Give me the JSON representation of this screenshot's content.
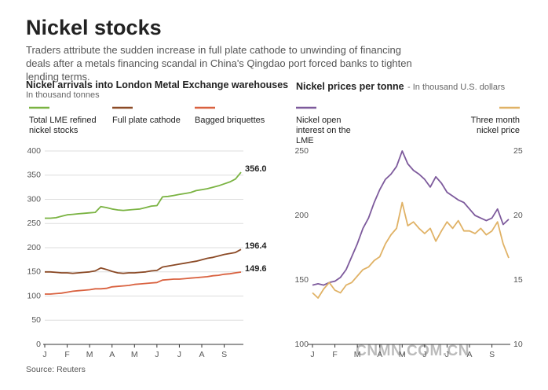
{
  "title": "Nickel stocks",
  "subtitle": "Traders attribute the sudden increase in full plate cathode to unwinding of financing deals after a metals financing scandal in China's Qingdao port forced banks to tighten lending terms.",
  "source": "Source: Reuters",
  "watermark": "CNMN.COM.CN",
  "chart_data": [
    {
      "type": "line",
      "title": "Nickel arrivals into London Metal Exchange warehouses",
      "subtitle": "In thousand tonnes",
      "categories": [
        "J",
        null,
        null,
        null,
        "F",
        null,
        null,
        null,
        "M",
        null,
        null,
        null,
        "A",
        null,
        null,
        null,
        "M",
        null,
        null,
        null,
        "J",
        null,
        null,
        null,
        "J",
        null,
        null,
        null,
        "A",
        null,
        null,
        null,
        "S",
        null,
        null,
        null
      ],
      "ylim": [
        0,
        400
      ],
      "yticks": [
        0,
        50,
        100,
        150,
        200,
        250,
        300,
        350,
        400
      ],
      "grid": true,
      "series": [
        {
          "name": "Total LME refined nickel stocks",
          "color": "#7ab342",
          "values": [
            261,
            261,
            262,
            265,
            268,
            269,
            270,
            271,
            272,
            273,
            285,
            283,
            280,
            278,
            277,
            278,
            279,
            280,
            283,
            286,
            287,
            305,
            306,
            308,
            310,
            312,
            314,
            318,
            320,
            322,
            325,
            328,
            332,
            336,
            342,
            356
          ],
          "value_labels": [
            null,
            null,
            null,
            null,
            null,
            null,
            null,
            null,
            null,
            null,
            null,
            null,
            null,
            null,
            null,
            null,
            null,
            null,
            null,
            null,
            null,
            null,
            null,
            null,
            null,
            null,
            null,
            null,
            null,
            null,
            null,
            null,
            null,
            null,
            null,
            "356.0"
          ]
        },
        {
          "name": "Full plate cathode",
          "color": "#8b4a26",
          "values": [
            150,
            150,
            149,
            148,
            148,
            147,
            148,
            149,
            150,
            152,
            158,
            155,
            151,
            148,
            147,
            148,
            148,
            149,
            150,
            152,
            153,
            160,
            162,
            164,
            166,
            168,
            170,
            172,
            175,
            178,
            180,
            183,
            186,
            188,
            190,
            196.4
          ],
          "value_labels": [
            null,
            null,
            null,
            null,
            null,
            null,
            null,
            null,
            null,
            null,
            null,
            null,
            null,
            null,
            null,
            null,
            null,
            null,
            null,
            null,
            null,
            null,
            null,
            null,
            null,
            null,
            null,
            null,
            null,
            null,
            null,
            null,
            null,
            null,
            null,
            "196.4"
          ]
        },
        {
          "name": "Bagged briquettes",
          "color": "#d9613f",
          "values": [
            104,
            104,
            105,
            106,
            108,
            110,
            111,
            112,
            113,
            115,
            115,
            116,
            119,
            120,
            121,
            122,
            124,
            125,
            126,
            127,
            128,
            133,
            134,
            135,
            135,
            136,
            137,
            138,
            139,
            140,
            142,
            143,
            145,
            146,
            148,
            149.6
          ],
          "value_labels": [
            null,
            null,
            null,
            null,
            null,
            null,
            null,
            null,
            null,
            null,
            null,
            null,
            null,
            null,
            null,
            null,
            null,
            null,
            null,
            null,
            null,
            null,
            null,
            null,
            null,
            null,
            null,
            null,
            null,
            null,
            null,
            null,
            null,
            null,
            null,
            "149.6"
          ]
        }
      ]
    },
    {
      "type": "line",
      "title": "Nickel prices per tonne",
      "subtitle": "- In thousand U.S. dollars",
      "categories": [
        "J",
        null,
        null,
        null,
        "F",
        null,
        null,
        null,
        "M",
        null,
        null,
        null,
        "A",
        null,
        null,
        null,
        "M",
        null,
        null,
        null,
        "J",
        null,
        null,
        null,
        "J",
        null,
        null,
        null,
        "A",
        null,
        null,
        null,
        "S",
        null,
        null,
        null
      ],
      "ylim": [
        100,
        250
      ],
      "yticks": [
        100,
        150,
        200,
        250
      ],
      "y2lim": [
        10,
        25
      ],
      "y2ticks": [
        10,
        15,
        20,
        25
      ],
      "grid": false,
      "series": [
        {
          "name": "Nickel open interest on the LME",
          "color": "#7d5a9c",
          "values": [
            146,
            147,
            146,
            148,
            149,
            152,
            158,
            168,
            178,
            190,
            198,
            210,
            220,
            228,
            232,
            238,
            250,
            240,
            235,
            232,
            228,
            222,
            230,
            225,
            218,
            215,
            212,
            210,
            205,
            200,
            198,
            196,
            198,
            205,
            193,
            197
          ]
        },
        {
          "name": "Three month nickel price",
          "color": "#e0b266",
          "axis": "y2",
          "values": [
            14.0,
            13.6,
            14.3,
            14.8,
            14.2,
            14.0,
            14.6,
            14.8,
            15.3,
            15.8,
            16.0,
            16.5,
            16.8,
            17.8,
            18.5,
            19.0,
            21.0,
            19.2,
            19.5,
            19.0,
            18.6,
            19.0,
            18.0,
            18.8,
            19.5,
            19.0,
            19.6,
            18.8,
            18.8,
            18.6,
            19.0,
            18.5,
            18.8,
            19.5,
            17.8,
            16.7
          ]
        }
      ]
    }
  ]
}
